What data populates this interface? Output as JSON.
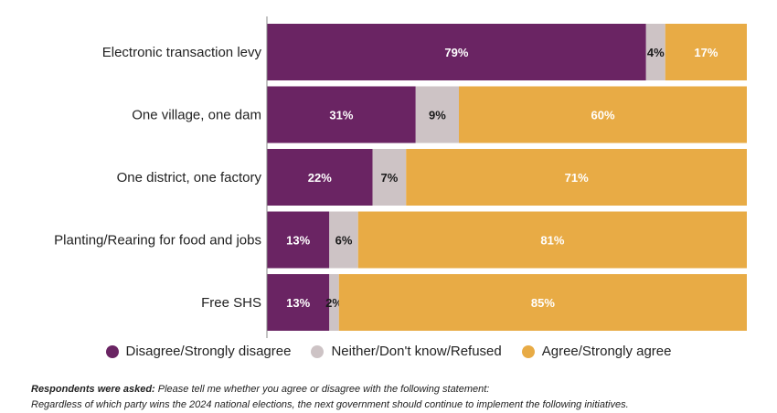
{
  "chart_data": {
    "type": "bar",
    "orientation": "horizontal",
    "stacked": true,
    "categories": [
      "Electronic transaction levy",
      "One village, one dam",
      "One district, one factory",
      "Planting/Rearing for food and jobs",
      "Free SHS"
    ],
    "series": [
      {
        "name": "Disagree/Strongly disagree",
        "color": "#6a2463",
        "label_color": "#ffffff",
        "values": [
          79,
          31,
          22,
          13,
          13
        ]
      },
      {
        "name": "Neither/Don't know/Refused",
        "color": "#cdc3c5",
        "label_color": "#1a1a1a",
        "values": [
          4,
          9,
          7,
          6,
          2
        ]
      },
      {
        "name": "Agree/Strongly agree",
        "color": "#e8ab45",
        "label_color": "#ffffff",
        "values": [
          17,
          60,
          71,
          81,
          85
        ]
      }
    ],
    "unit": "%",
    "xlim": [
      0,
      100
    ],
    "title": "",
    "xlabel": "",
    "ylabel": "",
    "legend_position": "bottom"
  },
  "footnote": {
    "lead": "Respondents were asked:",
    "line1": "Please tell me whether you agree or disagree with the following statement:",
    "line2": "Regardless of which party wins the 2024 national elections, the next government should continue to implement the following initiatives."
  }
}
